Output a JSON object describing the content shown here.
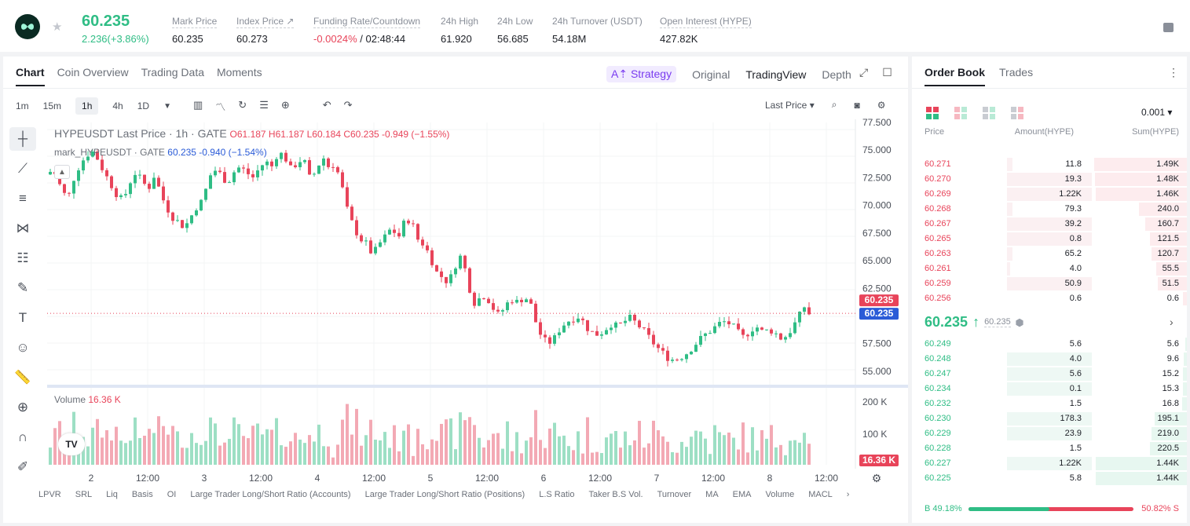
{
  "header": {
    "last_price": "60.235",
    "change": "2.236(+3.86%)",
    "stats": [
      {
        "label": "Mark Price",
        "value": "60.235"
      },
      {
        "label": "Index Price ↗",
        "value": "60.273"
      },
      {
        "label": "Funding Rate/Countdown",
        "value_neg": "-0.0024%",
        "value": " / 02:48:44"
      },
      {
        "label": "24h High",
        "value": "61.920"
      },
      {
        "label": "24h Low",
        "value": "56.685"
      },
      {
        "label": "24h Turnover (USDT)",
        "value": "54.18M"
      },
      {
        "label": "Open Interest (HYPE)",
        "value": "427.82K"
      }
    ]
  },
  "chart_tabs": [
    "Chart",
    "Coin Overview",
    "Trading Data",
    "Moments"
  ],
  "view_tabs": {
    "strategy": "A⇡ Strategy",
    "original": "Original",
    "tradingview": "TradingView",
    "depth": "Depth"
  },
  "timeframes": [
    "1m",
    "15m",
    "1h",
    "4h",
    "1D"
  ],
  "active_timeframe": "1h",
  "price_type": "Last Price",
  "legend": {
    "main": "HYPEUSDT Last Price · 1h · GATE",
    "ohlc": "O61.187 H61.187 L60.184 C60.235 -0.949 (−1.55%)",
    "mark_name": "mark_HYPEUSDT · GATE",
    "mark_vals": "60.235 -0.940 (−1.54%)"
  },
  "volume": {
    "label": "Volume",
    "value": "16.36 K"
  },
  "bottom_indicators": [
    "LPVR",
    "SRL",
    "Liq",
    "Basis",
    "OI",
    "Large Trader Long/Short Ratio (Accounts)",
    "Large Trader Long/Short Ratio (Positions)",
    "L.S Ratio",
    "Taker B.S Vol.",
    "Turnover",
    "MA",
    "EMA",
    "Volume",
    "MACL"
  ],
  "chart_data": {
    "type": "candlestick",
    "symbol": "HYPEUSDT",
    "interval": "1h",
    "ylim": [
      54,
      77.5
    ],
    "price_ticks": [
      "77.500",
      "75.000",
      "72.500",
      "70.000",
      "67.500",
      "65.000",
      "62.500",
      "57.500",
      "55.000"
    ],
    "volume_ticks": [
      "200 K",
      "100 K"
    ],
    "x_ticks": [
      "2",
      "12:00",
      "3",
      "12:00",
      "4",
      "12:00",
      "5",
      "12:00",
      "6",
      "12:00",
      "7",
      "12:00",
      "8",
      "12:00"
    ],
    "last_price_label": "60.235",
    "mark_price_label": "60.235",
    "volume_last_label": "16.36 K",
    "close_path": [
      [
        0,
        72.8
      ],
      [
        10,
        73.2
      ],
      [
        20,
        71.5
      ],
      [
        28,
        70.5
      ],
      [
        36,
        72.5
      ],
      [
        44,
        73.8
      ],
      [
        52,
        74.5
      ],
      [
        58,
        75.0
      ],
      [
        66,
        74.2
      ],
      [
        74,
        73.0
      ],
      [
        82,
        72.0
      ],
      [
        90,
        71.0
      ],
      [
        98,
        70.4
      ],
      [
        106,
        72.0
      ],
      [
        114,
        73.0
      ],
      [
        122,
        72.2
      ],
      [
        130,
        71.5
      ],
      [
        138,
        72.8
      ],
      [
        146,
        71.0
      ],
      [
        152,
        70.0
      ],
      [
        160,
        69.0
      ],
      [
        168,
        68.5
      ],
      [
        176,
        68.0
      ],
      [
        184,
        69.0
      ],
      [
        192,
        70.0
      ],
      [
        200,
        70.5
      ],
      [
        206,
        72.5
      ],
      [
        214,
        73.2
      ],
      [
        222,
        72.8
      ],
      [
        230,
        72.0
      ],
      [
        238,
        73.0
      ],
      [
        246,
        73.5
      ],
      [
        254,
        73.0
      ],
      [
        262,
        72.5
      ],
      [
        270,
        73.3
      ],
      [
        278,
        74.0
      ],
      [
        286,
        73.5
      ],
      [
        294,
        74.8
      ],
      [
        302,
        74.5
      ],
      [
        310,
        73.3
      ],
      [
        318,
        73.8
      ],
      [
        326,
        74.3
      ],
      [
        334,
        72.5
      ],
      [
        342,
        73.0
      ],
      [
        350,
        74.5
      ],
      [
        358,
        73.5
      ],
      [
        366,
        73.8
      ],
      [
        374,
        72.0
      ],
      [
        382,
        69.5
      ],
      [
        390,
        68.0
      ],
      [
        398,
        67.0
      ],
      [
        406,
        66.5
      ],
      [
        414,
        65.5
      ],
      [
        422,
        66.5
      ],
      [
        430,
        67.2
      ],
      [
        438,
        68.0
      ],
      [
        446,
        67.0
      ],
      [
        454,
        68.5
      ],
      [
        462,
        68.8
      ],
      [
        470,
        67.0
      ],
      [
        478,
        66.5
      ],
      [
        486,
        65.5
      ],
      [
        494,
        64.0
      ],
      [
        502,
        63.5
      ],
      [
        510,
        63.0
      ],
      [
        518,
        64.5
      ],
      [
        524,
        65.5
      ],
      [
        532,
        64.0
      ],
      [
        538,
        62.0
      ],
      [
        544,
        61.0
      ],
      [
        552,
        62.0
      ],
      [
        560,
        61.5
      ],
      [
        568,
        60.5
      ],
      [
        574,
        60.0
      ],
      [
        582,
        61.0
      ],
      [
        590,
        61.5
      ],
      [
        598,
        61.2
      ],
      [
        606,
        61.8
      ],
      [
        614,
        61.0
      ],
      [
        620,
        59.5
      ],
      [
        628,
        58.0
      ],
      [
        636,
        57.5
      ],
      [
        644,
        58.0
      ],
      [
        652,
        59.0
      ],
      [
        660,
        59.5
      ],
      [
        668,
        59.8
      ],
      [
        676,
        60.0
      ],
      [
        684,
        59.0
      ],
      [
        692,
        58.5
      ],
      [
        700,
        58.3
      ],
      [
        708,
        58.8
      ],
      [
        716,
        59.3
      ],
      [
        724,
        59.0
      ],
      [
        732,
        59.5
      ],
      [
        740,
        59.8
      ],
      [
        748,
        59.3
      ],
      [
        756,
        58.7
      ],
      [
        764,
        58.0
      ],
      [
        772,
        57.3
      ],
      [
        780,
        56.7
      ],
      [
        788,
        56.2
      ],
      [
        796,
        56.0
      ],
      [
        804,
        56.3
      ],
      [
        812,
        56.7
      ],
      [
        820,
        57.3
      ],
      [
        828,
        57.9
      ],
      [
        836,
        58.4
      ],
      [
        844,
        58.8
      ],
      [
        852,
        59.3
      ],
      [
        860,
        59.5
      ],
      [
        868,
        59.2
      ],
      [
        876,
        58.5
      ],
      [
        884,
        58.0
      ],
      [
        892,
        58.8
      ],
      [
        900,
        59.0
      ],
      [
        908,
        58.5
      ],
      [
        916,
        58.8
      ],
      [
        924,
        58.4
      ],
      [
        932,
        57.9
      ],
      [
        940,
        58.4
      ],
      [
        948,
        59.3
      ],
      [
        956,
        60.3
      ],
      [
        962,
        61.1
      ],
      [
        966,
        60.2
      ]
    ]
  },
  "order_book": {
    "tabs": [
      "Order Book",
      "Trades"
    ],
    "precision": "0.001",
    "headers": {
      "price": "Price",
      "amount": "Amount(HYPE)",
      "sum": "Sum(HYPE)"
    },
    "asks": [
      {
        "price": "60.271",
        "amount": "11.8",
        "sum": "1.49K",
        "depth": 1.0,
        "amtw": 0.06
      },
      {
        "price": "60.270",
        "amount": "19.3",
        "sum": "1.48K",
        "depth": 0.99,
        "amtw": 0.98
      },
      {
        "price": "60.269",
        "amount": "1.22K",
        "sum": "1.46K",
        "depth": 0.98,
        "amtw": 0.98
      },
      {
        "price": "60.268",
        "amount": "79.3",
        "sum": "240.0",
        "depth": 0.52,
        "amtw": 0.06
      },
      {
        "price": "60.267",
        "amount": "39.2",
        "sum": "160.7",
        "depth": 0.45,
        "amtw": 0.98
      },
      {
        "price": "60.265",
        "amount": "0.8",
        "sum": "121.5",
        "depth": 0.4,
        "amtw": 0.98
      },
      {
        "price": "60.263",
        "amount": "65.2",
        "sum": "120.7",
        "depth": 0.38,
        "amtw": 0.06
      },
      {
        "price": "60.261",
        "amount": "4.0",
        "sum": "55.5",
        "depth": 0.33,
        "amtw": 0.04
      },
      {
        "price": "60.259",
        "amount": "50.9",
        "sum": "51.5",
        "depth": 0.31,
        "amtw": 0.98
      },
      {
        "price": "60.256",
        "amount": "0.6",
        "sum": "0.6",
        "depth": 0.04,
        "amtw": 0.0
      }
    ],
    "mid": {
      "price": "60.235",
      "mark": "60.235"
    },
    "bids": [
      {
        "price": "60.249",
        "amount": "5.6",
        "sum": "5.6",
        "depth": 0.02,
        "amtw": 0.0
      },
      {
        "price": "60.248",
        "amount": "4.0",
        "sum": "9.6",
        "depth": 0.03,
        "amtw": 0.98
      },
      {
        "price": "60.247",
        "amount": "5.6",
        "sum": "15.2",
        "depth": 0.04,
        "amtw": 0.98
      },
      {
        "price": "60.234",
        "amount": "0.1",
        "sum": "15.3",
        "depth": 0.04,
        "amtw": 0.98
      },
      {
        "price": "60.232",
        "amount": "1.5",
        "sum": "16.8",
        "depth": 0.05,
        "amtw": 0.0
      },
      {
        "price": "60.230",
        "amount": "178.3",
        "sum": "195.1",
        "depth": 0.35,
        "amtw": 0.98
      },
      {
        "price": "60.229",
        "amount": "23.9",
        "sum": "219.0",
        "depth": 0.38,
        "amtw": 0.98
      },
      {
        "price": "60.228",
        "amount": "1.5",
        "sum": "220.5",
        "depth": 0.4,
        "amtw": 0.0
      },
      {
        "price": "60.227",
        "amount": "1.22K",
        "sum": "1.44K",
        "depth": 0.98,
        "amtw": 0.98
      },
      {
        "price": "60.225",
        "amount": "5.8",
        "sum": "1.44K",
        "depth": 0.98,
        "amtw": 0.0
      }
    ],
    "buy_ratio": "49.18%",
    "sell_ratio": "50.82%",
    "buy_label": "B",
    "sell_label": "S",
    "buy_frac": 0.4918
  },
  "colors": {
    "up": "#2fbd85",
    "down": "#e8445a",
    "accent": "#7a3cf0"
  }
}
